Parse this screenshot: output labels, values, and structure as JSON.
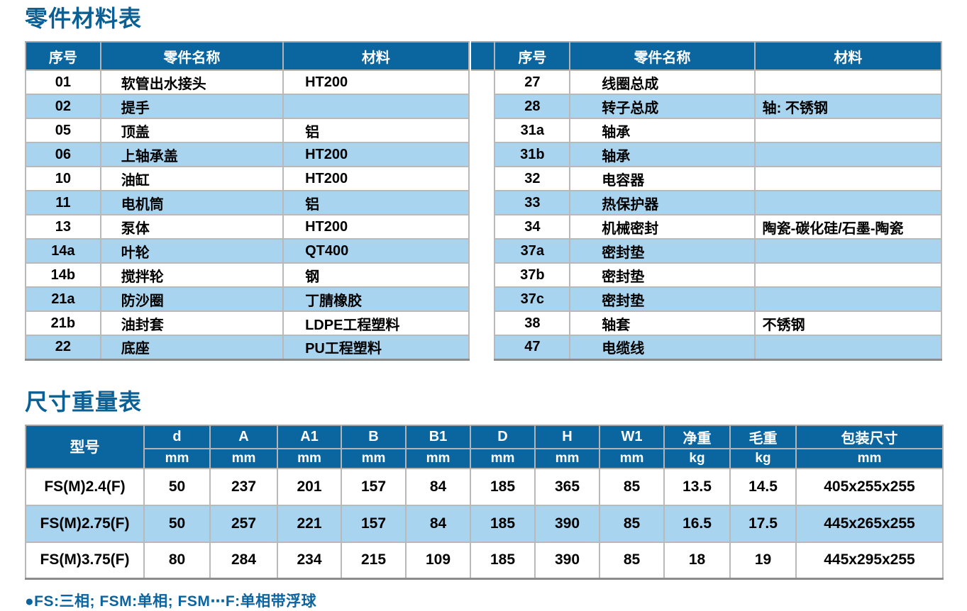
{
  "page": {
    "section1_title": "零件材料表",
    "section2_title": "尺寸重量表",
    "footnote": "●FS:三相; FSM:单相; FSM⋯F:单相带浮球"
  },
  "colors": {
    "header_blue": "#0B66A0",
    "stripe_light_blue": "#A9D4EF",
    "title_blue": "#0A5F94",
    "grid_gray": "#B9B9B9",
    "body_text": "#000000"
  },
  "parts_table": {
    "headers": [
      "序号",
      "零件名称",
      "材料"
    ],
    "left_rows": [
      {
        "no": "01",
        "name": "软管出水接头",
        "material": "HT200"
      },
      {
        "no": "02",
        "name": "提手",
        "material": ""
      },
      {
        "no": "05",
        "name": "顶盖",
        "material": "铝"
      },
      {
        "no": "06",
        "name": "上轴承盖",
        "material": "HT200"
      },
      {
        "no": "10",
        "name": "油缸",
        "material": "HT200"
      },
      {
        "no": "11",
        "name": "电机筒",
        "material": "铝"
      },
      {
        "no": "13",
        "name": "泵体",
        "material": "HT200"
      },
      {
        "no": "14a",
        "name": "叶轮",
        "material": "QT400"
      },
      {
        "no": "14b",
        "name": "搅拌轮",
        "material": "钢"
      },
      {
        "no": "21a",
        "name": "防沙圈",
        "material": "丁腈橡胶"
      },
      {
        "no": "21b",
        "name": "油封套",
        "material": "LDPE工程塑料"
      },
      {
        "no": "22",
        "name": "底座",
        "material": "PU工程塑料"
      }
    ],
    "right_rows": [
      {
        "no": "27",
        "name": "线圈总成",
        "material": ""
      },
      {
        "no": "28",
        "name": "转子总成",
        "material": "轴: 不锈钢"
      },
      {
        "no": "31a",
        "name": "轴承",
        "material": ""
      },
      {
        "no": "31b",
        "name": "轴承",
        "material": ""
      },
      {
        "no": "32",
        "name": "电容器",
        "material": ""
      },
      {
        "no": "33",
        "name": "热保护器",
        "material": ""
      },
      {
        "no": "34",
        "name": "机械密封",
        "material": "陶瓷-碳化硅/石墨-陶瓷"
      },
      {
        "no": "37a",
        "name": "密封垫",
        "material": ""
      },
      {
        "no": "37b",
        "name": "密封垫",
        "material": ""
      },
      {
        "no": "37c",
        "name": "密封垫",
        "material": ""
      },
      {
        "no": "38",
        "name": "轴套",
        "material": "不锈钢"
      },
      {
        "no": "47",
        "name": "电缆线",
        "material": ""
      }
    ]
  },
  "dimensions_table": {
    "model_header": "型号",
    "columns": [
      {
        "label": "d",
        "unit": "mm"
      },
      {
        "label": "A",
        "unit": "mm"
      },
      {
        "label": "A1",
        "unit": "mm"
      },
      {
        "label": "B",
        "unit": "mm"
      },
      {
        "label": "B1",
        "unit": "mm"
      },
      {
        "label": "D",
        "unit": "mm"
      },
      {
        "label": "H",
        "unit": "mm"
      },
      {
        "label": "W1",
        "unit": "mm"
      },
      {
        "label": "净重",
        "unit": "kg"
      },
      {
        "label": "毛重",
        "unit": "kg"
      },
      {
        "label": "包装尺寸",
        "unit": "mm"
      }
    ],
    "rows": [
      {
        "model": "FS(M)2.4(F)",
        "values": [
          "50",
          "237",
          "201",
          "157",
          "84",
          "185",
          "365",
          "85",
          "13.5",
          "14.5",
          "405x255x255"
        ]
      },
      {
        "model": "FS(M)2.75(F)",
        "values": [
          "50",
          "257",
          "221",
          "157",
          "84",
          "185",
          "390",
          "85",
          "16.5",
          "17.5",
          "445x265x255"
        ]
      },
      {
        "model": "FS(M)3.75(F)",
        "values": [
          "80",
          "284",
          "234",
          "215",
          "109",
          "185",
          "390",
          "85",
          "18",
          "19",
          "445x295x255"
        ]
      }
    ]
  }
}
